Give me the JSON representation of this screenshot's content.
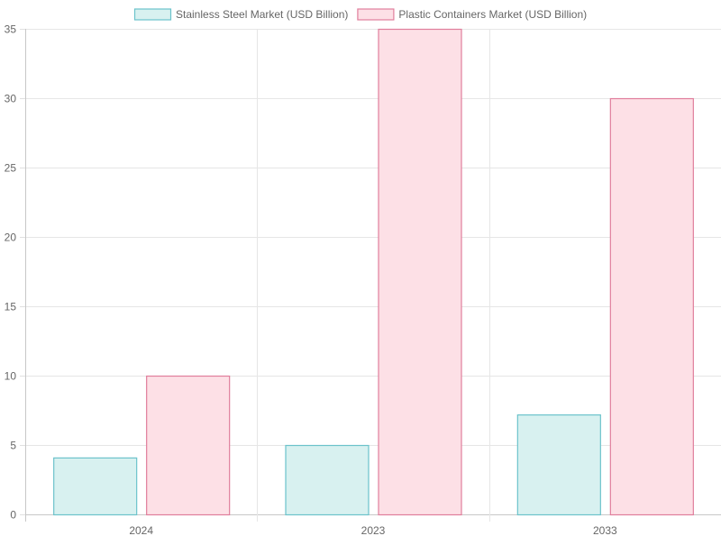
{
  "chart_data": {
    "type": "bar",
    "categories": [
      "2024",
      "2023",
      "2033"
    ],
    "series": [
      {
        "name": "Stainless Steel Market (USD Billion)",
        "values": [
          4.1,
          5.0,
          7.2
        ],
        "fill": "#d8f1f0",
        "stroke": "#6cc3cb"
      },
      {
        "name": "Plastic Containers Market (USD Billion)",
        "values": [
          10,
          35,
          30
        ],
        "fill": "#fde0e6",
        "stroke": "#e07e9c"
      }
    ],
    "ylim": [
      0,
      35
    ],
    "yticks": [
      0,
      5,
      10,
      15,
      20,
      25,
      30,
      35
    ],
    "grid": true,
    "legend_position": "top-center"
  }
}
